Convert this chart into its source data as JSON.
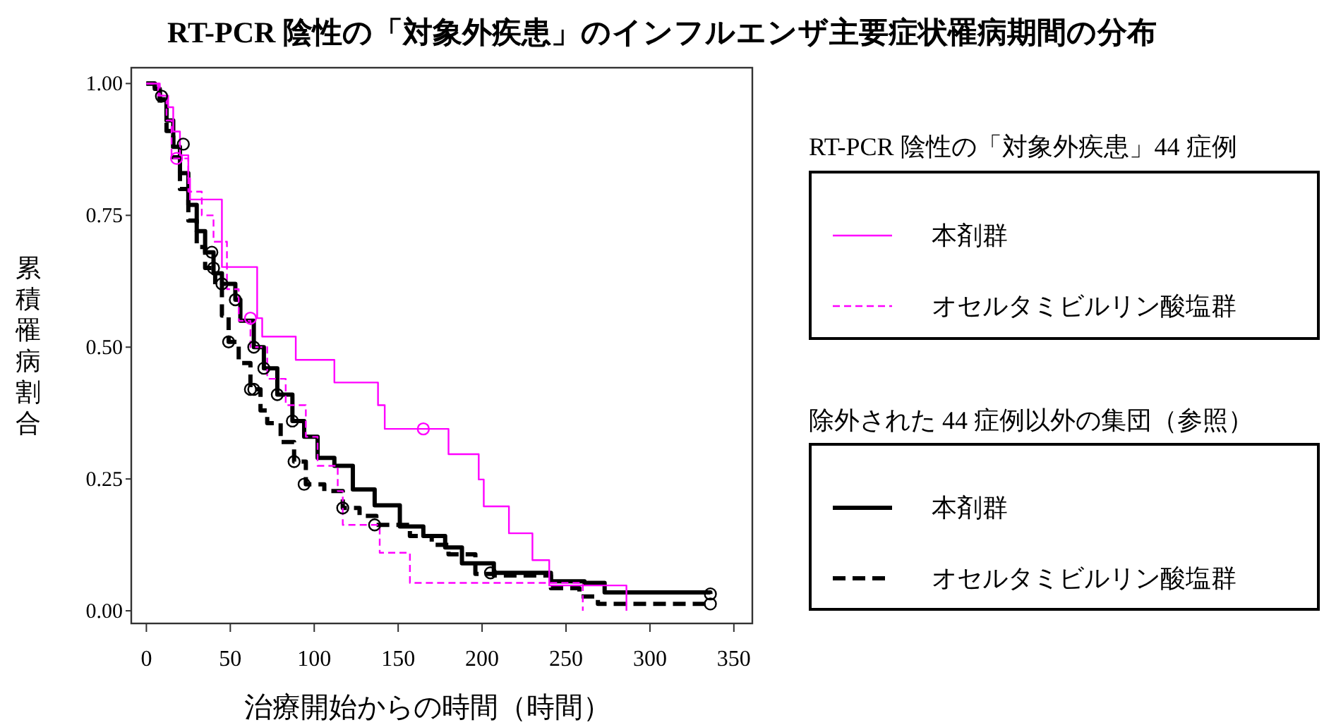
{
  "chart_data": {
    "type": "step",
    "title": "RT-PCR 陰性の「対象外疾患」のインフルエンザ主要症状罹病期間の分布",
    "xlabel": "治療開始からの時間（時間）",
    "ylabel": "累積罹病割合",
    "xlim": [
      -9,
      361
    ],
    "ylim": [
      -0.024,
      1.03
    ],
    "xticks": [
      0,
      50,
      100,
      150,
      200,
      250,
      300,
      350
    ],
    "yticks": [
      {
        "value": 0,
        "label": "0.00"
      },
      {
        "value": 0.25,
        "label": "0.25"
      },
      {
        "value": 0.5,
        "label": "0.50"
      },
      {
        "value": 0.75,
        "label": "0.75"
      },
      {
        "value": 1,
        "label": "1.00"
      }
    ],
    "grid": false,
    "legend": "right",
    "annotations": [
      "RT-PCR 陰性の「対象外疾患」44 症例",
      "除外された 44 症例以外の集団（参照）"
    ],
    "series": [
      {
        "name": "本剤群",
        "color": "#ff00ff",
        "line_style": "solid",
        "x": [
          0,
          7,
          13,
          16,
          20,
          25,
          26,
          45,
          66,
          69,
          89,
          112,
          138,
          142,
          180,
          198,
          201,
          216,
          230,
          240,
          286
        ],
        "values": [
          1,
          0.977,
          0.955,
          0.909,
          0.864,
          0.82,
          0.78,
          0.652,
          0.555,
          0.52,
          0.476,
          0.433,
          0.39,
          0.345,
          0.297,
          0.249,
          0.198,
          0.147,
          0.096,
          0.048,
          0
        ]
      },
      {
        "name": "オセルタミビルリン酸塩群",
        "color": "#ff00ff",
        "line_style": "dashed",
        "x": [
          0,
          8,
          12,
          15,
          25,
          33,
          40,
          48,
          55,
          62,
          72,
          83,
          95,
          102,
          114,
          117,
          139,
          157,
          260
        ],
        "values": [
          1,
          0.977,
          0.93,
          0.858,
          0.795,
          0.75,
          0.7,
          0.61,
          0.55,
          0.5,
          0.44,
          0.39,
          0.33,
          0.275,
          0.227,
          0.163,
          0.11,
          0.053,
          0
        ]
      },
      {
        "name": "本剤群",
        "color": "#000000",
        "line_style": "solid",
        "x": [
          0,
          5,
          8,
          12,
          16,
          20,
          25,
          30,
          35,
          40,
          45,
          53,
          56,
          64,
          70,
          78,
          87,
          94,
          102,
          112,
          123,
          136,
          151,
          165,
          178,
          188,
          207,
          241,
          261,
          273,
          336
        ],
        "values": [
          1,
          0.99,
          0.97,
          0.93,
          0.88,
          0.83,
          0.77,
          0.72,
          0.68,
          0.64,
          0.62,
          0.59,
          0.55,
          0.5,
          0.46,
          0.41,
          0.36,
          0.33,
          0.29,
          0.275,
          0.23,
          0.2,
          0.16,
          0.142,
          0.12,
          0.09,
          0.072,
          0.056,
          0.053,
          0.035,
          0.032
        ]
      },
      {
        "name": "オセルタミビルリン酸塩群",
        "color": "#000000",
        "line_style": "dashed",
        "x": [
          0,
          5,
          8,
          12,
          16,
          20,
          25,
          30,
          35,
          41,
          45,
          49,
          55,
          62,
          68,
          72,
          80,
          88,
          95,
          106,
          117,
          127,
          137,
          157,
          170,
          180,
          196,
          207,
          241,
          258,
          269,
          336
        ],
        "values": [
          1,
          0.99,
          0.96,
          0.91,
          0.86,
          0.8,
          0.74,
          0.69,
          0.65,
          0.615,
          0.56,
          0.51,
          0.47,
          0.42,
          0.38,
          0.356,
          0.32,
          0.283,
          0.24,
          0.227,
          0.195,
          0.18,
          0.163,
          0.142,
          0.125,
          0.107,
          0.07,
          0.067,
          0.043,
          0.027,
          0.013,
          0.013
        ]
      },
      {
        "type": "scatter",
        "color": "#ff00ff",
        "marker": "circle",
        "x": [
          62,
          165
        ],
        "values": [
          0.555,
          0.345
        ]
      },
      {
        "type": "scatter",
        "color": "#ff00ff",
        "marker": "circle",
        "x": [
          18
        ],
        "values": [
          0.858
        ]
      },
      {
        "type": "scatter",
        "color": "#000000",
        "marker": "circle",
        "x": [
          9,
          22,
          39,
          45,
          53,
          64,
          70,
          78,
          87,
          205,
          336
        ],
        "values": [
          0.976,
          0.885,
          0.68,
          0.62,
          0.59,
          0.5,
          0.46,
          0.41,
          0.36,
          0.072,
          0.032
        ]
      },
      {
        "type": "scatter",
        "color": "#000000",
        "marker": "circle",
        "x": [
          40,
          49,
          62,
          64,
          88,
          94,
          117,
          136,
          336
        ],
        "values": [
          0.65,
          0.51,
          0.42,
          0.42,
          0.283,
          0.24,
          0.195,
          0.163,
          0.013
        ]
      }
    ]
  }
}
